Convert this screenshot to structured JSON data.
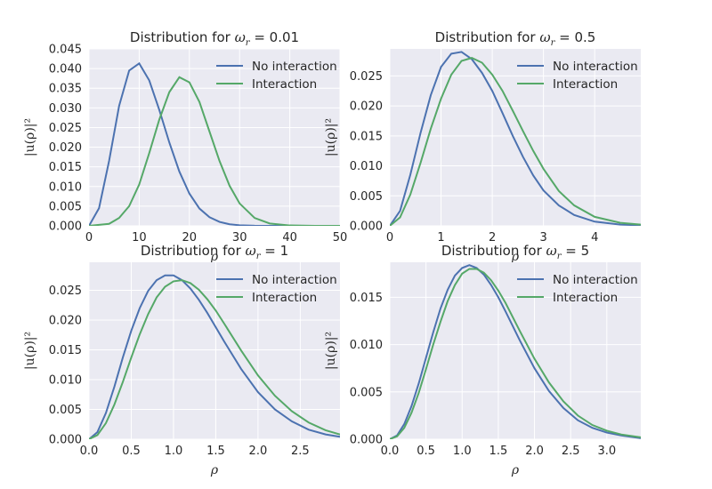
{
  "colors": {
    "no_interaction": "#4c72b0",
    "interaction": "#55a868",
    "panel_bg": "#eaeaf2",
    "grid": "#ffffff"
  },
  "chart_data": [
    {
      "type": "line",
      "title_prefix": "Distribution for ",
      "title_symbol": "ω",
      "title_sub": "r",
      "title_suffix": " = 0.01",
      "xlabel": "ρ",
      "ylabel": "|u(ρ)|²",
      "xlim": [
        0,
        50
      ],
      "ylim": [
        0,
        0.045
      ],
      "xticks": [
        0,
        10,
        20,
        30,
        40,
        50
      ],
      "xtick_labels": [
        "0",
        "10",
        "20",
        "30",
        "40",
        "50"
      ],
      "yticks": [
        0,
        0.005,
        0.01,
        0.015,
        0.02,
        0.025,
        0.03,
        0.035,
        0.04,
        0.045
      ],
      "ytick_labels": [
        "0.000",
        "0.005",
        "0.010",
        "0.015",
        "0.020",
        "0.025",
        "0.030",
        "0.035",
        "0.040",
        "0.045"
      ],
      "grid": true,
      "legend": "top-right",
      "series": [
        {
          "name": "No interaction",
          "x": [
            0,
            2,
            4,
            6,
            8,
            10,
            12,
            14,
            16,
            18,
            20,
            22,
            24,
            26,
            28,
            30,
            33,
            36,
            40,
            45,
            50
          ],
          "values": [
            0,
            0.0045,
            0.0165,
            0.0305,
            0.0395,
            0.0413,
            0.037,
            0.0295,
            0.0212,
            0.0138,
            0.0082,
            0.0044,
            0.0022,
            0.001,
            0.0004,
            0.00015,
            3e-05,
            0,
            0,
            0,
            0
          ]
        },
        {
          "name": "Interaction",
          "x": [
            0,
            4,
            6,
            8,
            10,
            12,
            14,
            16,
            18,
            20,
            22,
            24,
            26,
            28,
            30,
            33,
            36,
            40,
            45,
            50
          ],
          "values": [
            0,
            0.0005,
            0.002,
            0.005,
            0.0105,
            0.0185,
            0.027,
            0.034,
            0.0378,
            0.0365,
            0.0315,
            0.024,
            0.0165,
            0.0102,
            0.0057,
            0.002,
            0.0006,
            0.0001,
            0,
            0
          ]
        }
      ]
    },
    {
      "type": "line",
      "title_prefix": "Distribution for ",
      "title_symbol": "ω",
      "title_sub": "r",
      "title_suffix": " = 0.5",
      "xlabel": "ρ",
      "ylabel": "|u(ρ)|²",
      "xlim": [
        0,
        4.9
      ],
      "ylim": [
        0,
        0.0295
      ],
      "xticks": [
        0,
        1,
        2,
        3,
        4
      ],
      "xtick_labels": [
        "0",
        "1",
        "2",
        "3",
        "4"
      ],
      "yticks": [
        0,
        0.005,
        0.01,
        0.015,
        0.02,
        0.025
      ],
      "ytick_labels": [
        "0.000",
        "0.005",
        "0.010",
        "0.015",
        "0.020",
        "0.025"
      ],
      "grid": true,
      "legend": "top-right",
      "series": [
        {
          "name": "No interaction",
          "x": [
            0,
            0.2,
            0.4,
            0.6,
            0.8,
            1.0,
            1.2,
            1.4,
            1.6,
            1.8,
            2.0,
            2.2,
            2.4,
            2.6,
            2.8,
            3.0,
            3.3,
            3.6,
            4.0,
            4.5,
            4.9
          ],
          "values": [
            0,
            0.0025,
            0.0085,
            0.0155,
            0.0218,
            0.0265,
            0.0287,
            0.029,
            0.0278,
            0.0255,
            0.0225,
            0.0188,
            0.015,
            0.0115,
            0.0084,
            0.0059,
            0.0034,
            0.0018,
            0.0007,
            0.0002,
            0.0001
          ]
        },
        {
          "name": "Interaction",
          "x": [
            0,
            0.2,
            0.4,
            0.6,
            0.8,
            1.0,
            1.2,
            1.4,
            1.6,
            1.8,
            2.0,
            2.2,
            2.4,
            2.6,
            2.8,
            3.0,
            3.3,
            3.6,
            4.0,
            4.5,
            4.9
          ],
          "values": [
            0,
            0.0014,
            0.0052,
            0.0105,
            0.0162,
            0.0212,
            0.0252,
            0.0275,
            0.028,
            0.0272,
            0.0252,
            0.0225,
            0.0192,
            0.0158,
            0.0125,
            0.0095,
            0.0058,
            0.0034,
            0.0015,
            0.0005,
            0.0002
          ]
        }
      ]
    },
    {
      "type": "line",
      "title_prefix": "Distribution for ",
      "title_symbol": "ω",
      "title_sub": "r",
      "title_suffix": " = 1",
      "xlabel": "ρ",
      "ylabel": "|u(ρ)|²",
      "xlim": [
        0,
        2.97
      ],
      "ylim": [
        0,
        0.0297
      ],
      "xticks": [
        0,
        0.5,
        1,
        1.5,
        2,
        2.5
      ],
      "xtick_labels": [
        "0.0",
        "0.5",
        "1.0",
        "1.5",
        "2.0",
        "2.5"
      ],
      "yticks": [
        0,
        0.005,
        0.01,
        0.015,
        0.02,
        0.025
      ],
      "ytick_labels": [
        "0.000",
        "0.005",
        "0.010",
        "0.015",
        "0.020",
        "0.025"
      ],
      "grid": true,
      "legend": "top-right",
      "series": [
        {
          "name": "No interaction",
          "x": [
            0,
            0.1,
            0.2,
            0.3,
            0.4,
            0.5,
            0.6,
            0.7,
            0.8,
            0.9,
            1.0,
            1.1,
            1.2,
            1.3,
            1.4,
            1.5,
            1.6,
            1.8,
            2.0,
            2.2,
            2.4,
            2.6,
            2.8,
            2.97
          ],
          "values": [
            0,
            0.0012,
            0.0044,
            0.0088,
            0.0137,
            0.0182,
            0.022,
            0.0249,
            0.0267,
            0.0275,
            0.0275,
            0.0267,
            0.0253,
            0.0234,
            0.0212,
            0.0188,
            0.0164,
            0.0118,
            0.0079,
            0.005,
            0.003,
            0.0016,
            0.0008,
            0.0004
          ]
        },
        {
          "name": "Interaction",
          "x": [
            0,
            0.1,
            0.2,
            0.3,
            0.4,
            0.5,
            0.6,
            0.7,
            0.8,
            0.9,
            1.0,
            1.1,
            1.2,
            1.3,
            1.4,
            1.5,
            1.6,
            1.8,
            2.0,
            2.2,
            2.4,
            2.6,
            2.8,
            2.97
          ],
          "values": [
            0,
            0.0007,
            0.0027,
            0.0058,
            0.0096,
            0.0137,
            0.0176,
            0.021,
            0.0238,
            0.0256,
            0.0265,
            0.0267,
            0.0262,
            0.0251,
            0.0235,
            0.0216,
            0.0194,
            0.0149,
            0.0107,
            0.0073,
            0.0047,
            0.0028,
            0.0015,
            0.0008
          ]
        }
      ]
    },
    {
      "type": "line",
      "title_prefix": "Distribution for ",
      "title_symbol": "ω",
      "title_sub": "r",
      "title_suffix": " = 5",
      "xlabel": "ρ",
      "ylabel": "|u(ρ)|²",
      "xlim": [
        0,
        3.47
      ],
      "ylim": [
        0,
        0.0187
      ],
      "xticks": [
        0,
        0.5,
        1,
        1.5,
        2,
        2.5,
        3
      ],
      "xtick_labels": [
        "0.0",
        "0.5",
        "1.0",
        "1.5",
        "2.0",
        "2.5",
        "3.0"
      ],
      "yticks": [
        0,
        0.005,
        0.01,
        0.015
      ],
      "ytick_labels": [
        "0.000",
        "0.005",
        "0.010",
        "0.015"
      ],
      "grid": true,
      "legend": "top-right",
      "series": [
        {
          "name": "No interaction",
          "x": [
            0,
            0.1,
            0.2,
            0.3,
            0.4,
            0.5,
            0.6,
            0.7,
            0.8,
            0.9,
            1.0,
            1.1,
            1.2,
            1.3,
            1.4,
            1.5,
            1.6,
            1.8,
            2.0,
            2.2,
            2.4,
            2.6,
            2.8,
            3.0,
            3.2,
            3.47
          ],
          "values": [
            0,
            0.0004,
            0.0016,
            0.0035,
            0.0059,
            0.0086,
            0.0113,
            0.0138,
            0.0158,
            0.0173,
            0.0181,
            0.0184,
            0.0181,
            0.0174,
            0.0163,
            0.015,
            0.0135,
            0.0104,
            0.0075,
            0.0051,
            0.0033,
            0.002,
            0.0012,
            0.0007,
            0.0004,
            0.0001
          ]
        },
        {
          "name": "Interaction",
          "x": [
            0,
            0.1,
            0.2,
            0.3,
            0.4,
            0.5,
            0.6,
            0.7,
            0.8,
            0.9,
            1.0,
            1.1,
            1.2,
            1.3,
            1.4,
            1.5,
            1.6,
            1.8,
            2.0,
            2.2,
            2.4,
            2.6,
            2.8,
            3.0,
            3.2,
            3.47
          ],
          "values": [
            0,
            0.0003,
            0.0012,
            0.0028,
            0.0049,
            0.0074,
            0.01,
            0.0124,
            0.0146,
            0.0163,
            0.0175,
            0.018,
            0.018,
            0.0176,
            0.0168,
            0.0157,
            0.0144,
            0.0114,
            0.0085,
            0.006,
            0.004,
            0.0025,
            0.0015,
            0.0009,
            0.0005,
            0.0002
          ]
        }
      ]
    }
  ]
}
